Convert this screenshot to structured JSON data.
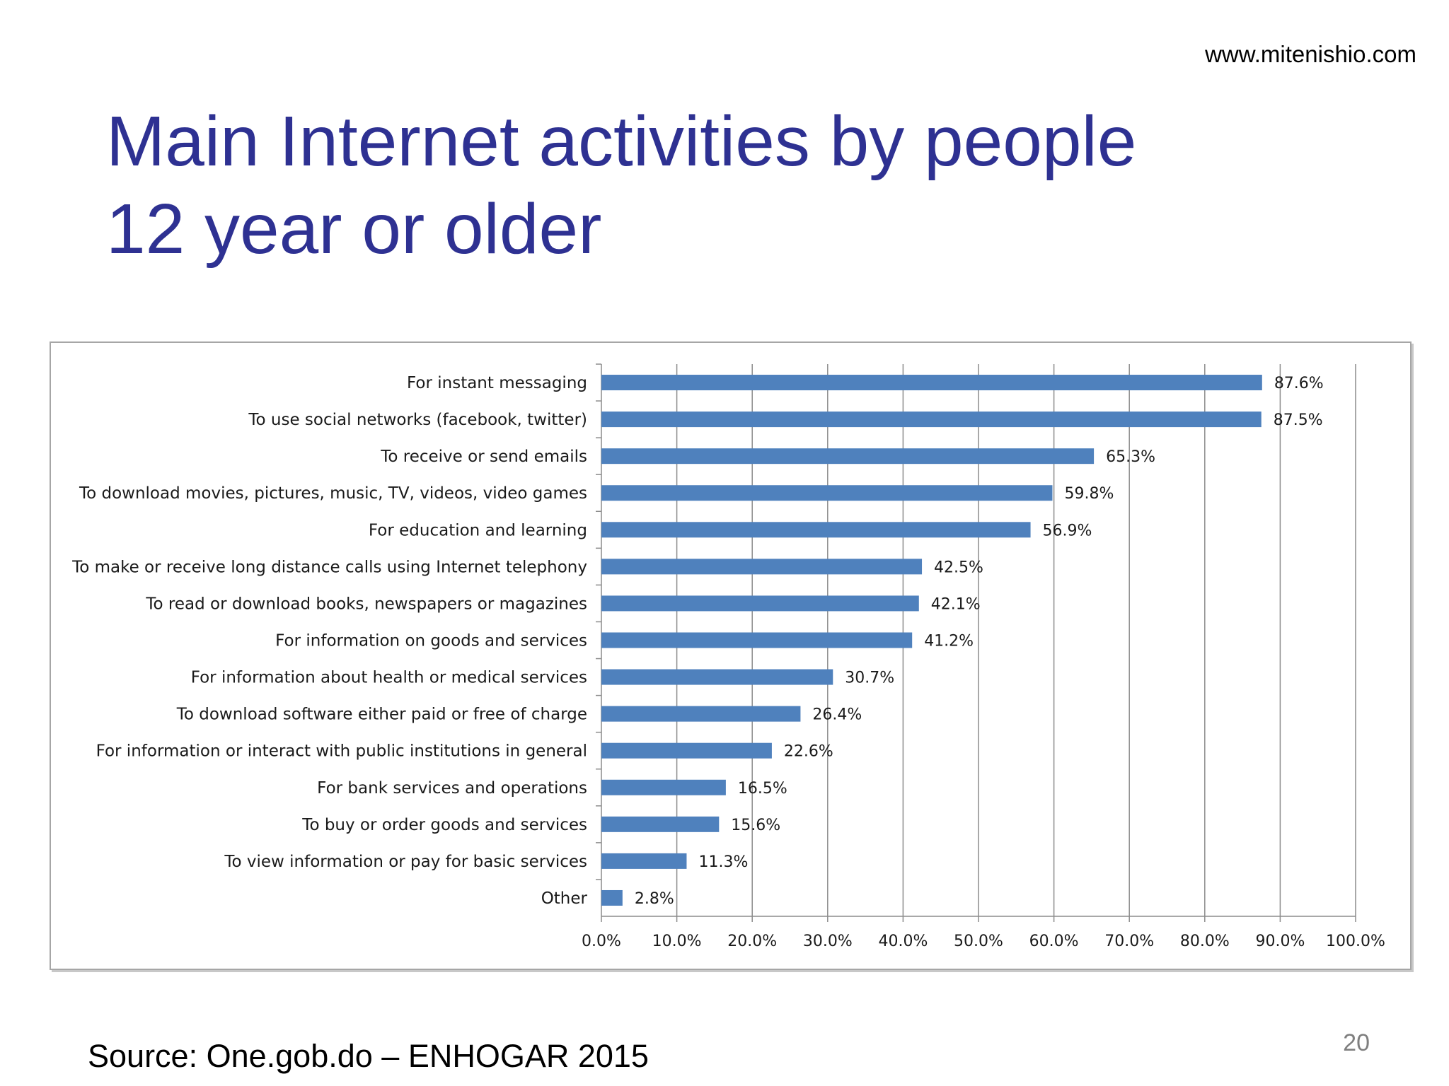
{
  "slide": {
    "website": "www.mitenishio.com",
    "title_line1": "Main Internet activities by people",
    "title_line2": "12 year or older",
    "source": "Source:  One.gob.do – ENHOGAR 2015",
    "page_number": "20"
  },
  "chart_data": {
    "type": "bar",
    "orientation": "horizontal",
    "title": "",
    "xlabel": "",
    "ylabel": "",
    "xlim": [
      0,
      100
    ],
    "grid": true,
    "bar_color": "#4f81bd",
    "ticks": [
      "0.0%",
      "10.0%",
      "20.0%",
      "30.0%",
      "40.0%",
      "50.0%",
      "60.0%",
      "70.0%",
      "80.0%",
      "90.0%",
      "100.0%"
    ],
    "categories": [
      "For instant messaging",
      "To use social networks (facebook, twitter)",
      "To receive or send emails",
      "To download movies, pictures, music, TV, videos, video games",
      "For education and learning",
      "To make or receive long distance calls using Internet telephony",
      "To read or download books, newspapers or magazines",
      "For information on goods and services",
      "For information about health or medical services",
      "To download software either paid or free of charge",
      "For information or interact with public institutions in general",
      "For bank services and operations",
      "To buy or order goods and services",
      "To view information or pay for basic services",
      "Other"
    ],
    "values": [
      87.6,
      87.5,
      65.3,
      59.8,
      56.9,
      42.5,
      42.1,
      41.2,
      30.7,
      26.4,
      22.6,
      16.5,
      15.6,
      11.3,
      2.8
    ],
    "value_labels": [
      "87.6%",
      "87.5%",
      "65.3%",
      "59.8%",
      "56.9%",
      "42.5%",
      "42.1%",
      "41.2%",
      "30.7%",
      "26.4%",
      "22.6%",
      "16.5%",
      "15.6%",
      "11.3%",
      "2.8%"
    ]
  }
}
